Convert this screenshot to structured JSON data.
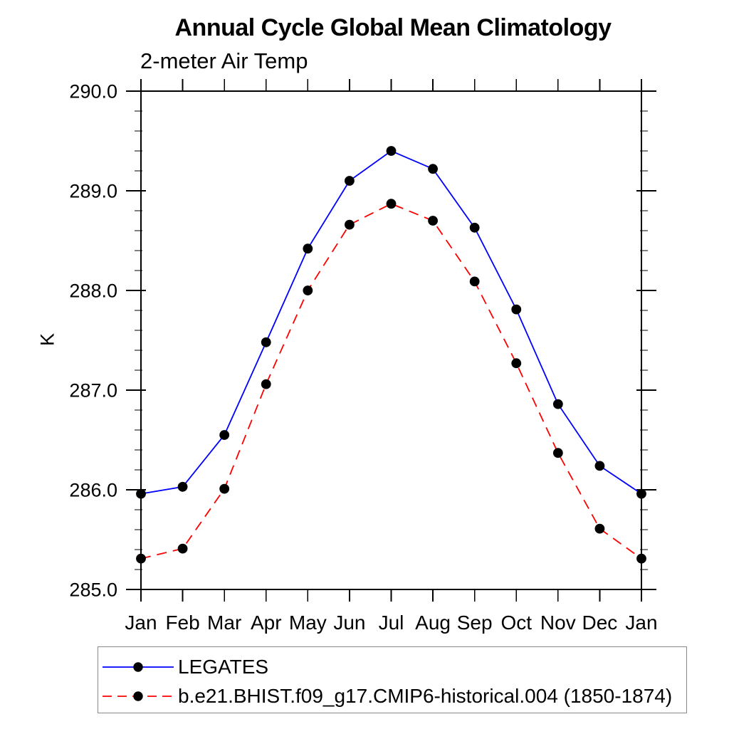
{
  "chart_data": {
    "type": "line",
    "title": "Annual Cycle Global Mean Climatology",
    "subtitle": "2-meter Air Temp",
    "ylabel": "K",
    "xlabel": "",
    "categories": [
      "Jan",
      "Feb",
      "Mar",
      "Apr",
      "May",
      "Jun",
      "Jul",
      "Aug",
      "Sep",
      "Oct",
      "Nov",
      "Dec",
      "Jan"
    ],
    "ylim": [
      285.0,
      290.0
    ],
    "ytick_interval": 1.0,
    "yminor_interval": 0.2,
    "ytick_labels": [
      "285.0",
      "286.0",
      "287.0",
      "288.0",
      "289.0",
      "290.0"
    ],
    "grid": false,
    "legend_position": "below-left",
    "frame_color": "#000000",
    "marker": "filled-circle",
    "marker_color": "#000000",
    "series": [
      {
        "name": "LEGATES",
        "color": "#0000ff",
        "line_style": "solid",
        "values": [
          285.96,
          286.03,
          286.55,
          287.48,
          288.42,
          289.1,
          289.4,
          289.22,
          288.63,
          287.81,
          286.86,
          286.24,
          285.96
        ]
      },
      {
        "name": "b.e21.BHIST.f09_g17.CMIP6-historical.004 (1850-1874)",
        "color": "#ff0000",
        "line_style": "dashed",
        "values": [
          285.31,
          285.41,
          286.01,
          287.06,
          288.0,
          288.66,
          288.87,
          288.7,
          288.09,
          287.27,
          286.37,
          285.61,
          285.31
        ]
      }
    ]
  }
}
